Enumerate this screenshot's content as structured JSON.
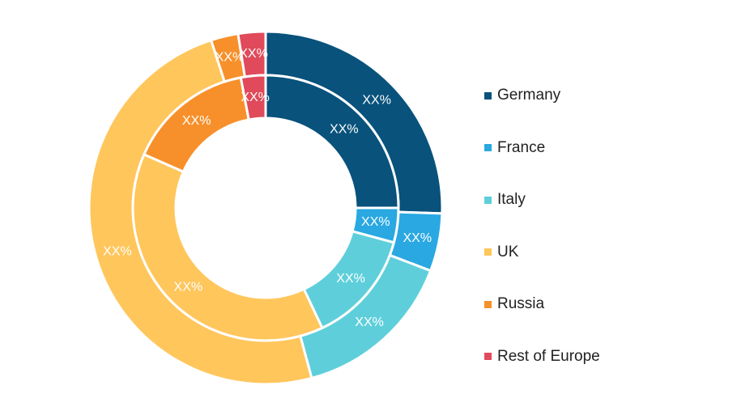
{
  "chart_data": {
    "type": "pie",
    "style": "double-donut",
    "categories": [
      "Germany",
      "France",
      "Italy",
      "UK",
      "Russia",
      "Rest of Europe"
    ],
    "colors": [
      "#08527c",
      "#2aa8e2",
      "#5ecfda",
      "#ffc65c",
      "#f7902a",
      "#e04a5a"
    ],
    "series": [
      {
        "ring": "outer",
        "values": [
          25.5,
          5.3,
          15.0,
          49.2,
          2.5,
          2.5
        ],
        "labels": [
          "XX%",
          "XX%",
          "XX%",
          "XX%",
          "XX%",
          "XX%"
        ]
      },
      {
        "ring": "inner",
        "values": [
          25.0,
          4.2,
          13.8,
          38.6,
          15.4,
          3.0
        ],
        "labels": [
          "XX%",
          "XX%",
          "XX%",
          "XX%",
          "XX%",
          "XX%"
        ]
      }
    ],
    "legend_position": "right"
  }
}
